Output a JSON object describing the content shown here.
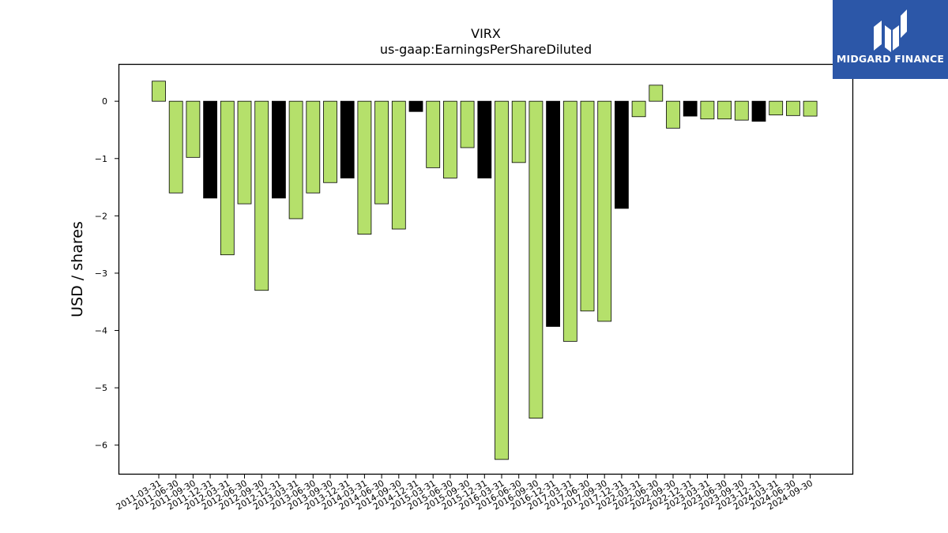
{
  "chart_data": {
    "type": "bar",
    "title": "VIRX",
    "subtitle": "us-gaap:EarningsPerShareDiluted",
    "xlabel": "",
    "ylabel": "USD / shares",
    "ylim": [
      -6.5,
      0.65
    ],
    "yticks": [
      0,
      -1,
      -2,
      -3,
      -4,
      -5,
      -6
    ],
    "grid": false,
    "categories": [
      "2011-03-31",
      "2011-06-30",
      "2011-09-30",
      "2011-12-31",
      "2012-03-31",
      "2012-06-30",
      "2012-09-30",
      "2012-12-31",
      "2013-03-31",
      "2013-06-30",
      "2013-09-30",
      "2013-12-31",
      "2014-03-31",
      "2014-06-30",
      "2014-09-30",
      "2014-12-31",
      "2015-03-31",
      "2015-06-30",
      "2015-09-30",
      "2015-12-31",
      "2016-03-31",
      "2016-06-30",
      "2016-09-30",
      "2016-12-31",
      "2017-03-31",
      "2017-06-30",
      "2017-09-30",
      "2017-12-31",
      "2022-03-31",
      "2022-06-30",
      "2022-09-30",
      "2022-12-31",
      "2023-03-31",
      "2023-06-30",
      "2023-09-30",
      "2023-12-31",
      "2024-03-31",
      "2024-06-30",
      "2024-09-30"
    ],
    "values": [
      0.35,
      -1.6,
      -0.98,
      -1.69,
      -2.68,
      -1.79,
      -3.3,
      -1.69,
      -2.05,
      -1.6,
      -1.42,
      -1.34,
      -2.32,
      -1.79,
      -2.23,
      -0.18,
      -1.16,
      -1.34,
      -0.81,
      -1.34,
      -6.25,
      -1.07,
      -5.53,
      -3.93,
      -4.19,
      -3.66,
      -3.84,
      -1.87,
      -0.27,
      0.28,
      -0.47,
      -0.26,
      -0.31,
      -0.31,
      -0.33,
      -0.35,
      -0.24,
      -0.25,
      -0.26
    ],
    "bar_colors": [
      "#b5e06b",
      "#b5e06b",
      "#b5e06b",
      "#000000",
      "#b5e06b",
      "#b5e06b",
      "#b5e06b",
      "#000000",
      "#b5e06b",
      "#b5e06b",
      "#b5e06b",
      "#000000",
      "#b5e06b",
      "#b5e06b",
      "#b5e06b",
      "#000000",
      "#b5e06b",
      "#b5e06b",
      "#b5e06b",
      "#000000",
      "#b5e06b",
      "#b5e06b",
      "#b5e06b",
      "#000000",
      "#b5e06b",
      "#b5e06b",
      "#b5e06b",
      "#000000",
      "#b5e06b",
      "#b5e06b",
      "#b5e06b",
      "#000000",
      "#b5e06b",
      "#b5e06b",
      "#b5e06b",
      "#000000",
      "#b5e06b",
      "#b5e06b",
      "#b5e06b"
    ]
  },
  "brand": {
    "name": "MIDGARD FINANCE",
    "background": "#2c57a8",
    "icon": "midgard-logo-icon"
  }
}
